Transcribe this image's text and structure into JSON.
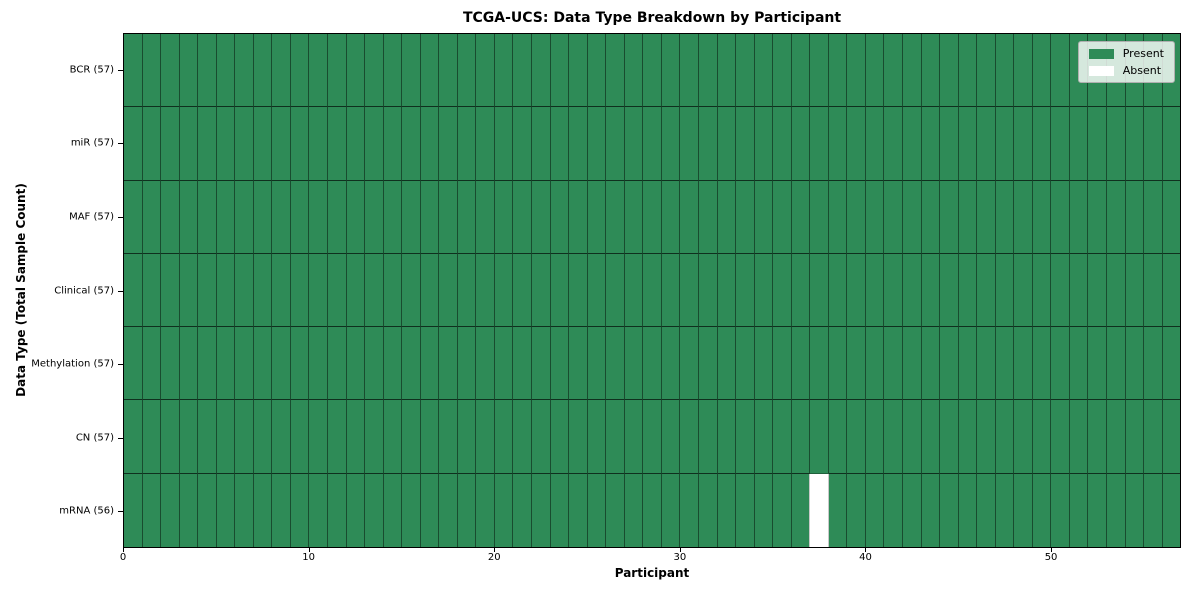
{
  "chart_data": {
    "type": "heatmap",
    "title": "TCGA-UCS: Data Type Breakdown by Participant",
    "xlabel": "Participant",
    "ylabel": "Data Type (Total Sample Count)",
    "x_ticks": [
      0,
      10,
      20,
      30,
      40,
      50
    ],
    "x_range": [
      0,
      57
    ],
    "n_participants": 57,
    "grid": "off",
    "rows": [
      {
        "label": "BCR (57)",
        "data_type": "BCR",
        "total_samples": 57,
        "absent_participants": []
      },
      {
        "label": "miR (57)",
        "data_type": "miR",
        "total_samples": 57,
        "absent_participants": []
      },
      {
        "label": "MAF (57)",
        "data_type": "MAF",
        "total_samples": 57,
        "absent_participants": []
      },
      {
        "label": "Clinical (57)",
        "data_type": "Clinical",
        "total_samples": 57,
        "absent_participants": []
      },
      {
        "label": "Methylation (57)",
        "data_type": "Methylation",
        "total_samples": 57,
        "absent_participants": []
      },
      {
        "label": "CN (57)",
        "data_type": "CN",
        "total_samples": 57,
        "absent_participants": []
      },
      {
        "label": "mRNA (56)",
        "data_type": "mRNA",
        "total_samples": 56,
        "absent_participants": [
          37
        ]
      }
    ],
    "legend": {
      "position": "upper right",
      "items": [
        {
          "label": "Present",
          "color": "#2e8b57"
        },
        {
          "label": "Absent",
          "color": "#ffffff"
        }
      ]
    },
    "colors": {
      "present": "#2e8b57",
      "absent": "#ffffff",
      "spine": "#000000"
    }
  }
}
